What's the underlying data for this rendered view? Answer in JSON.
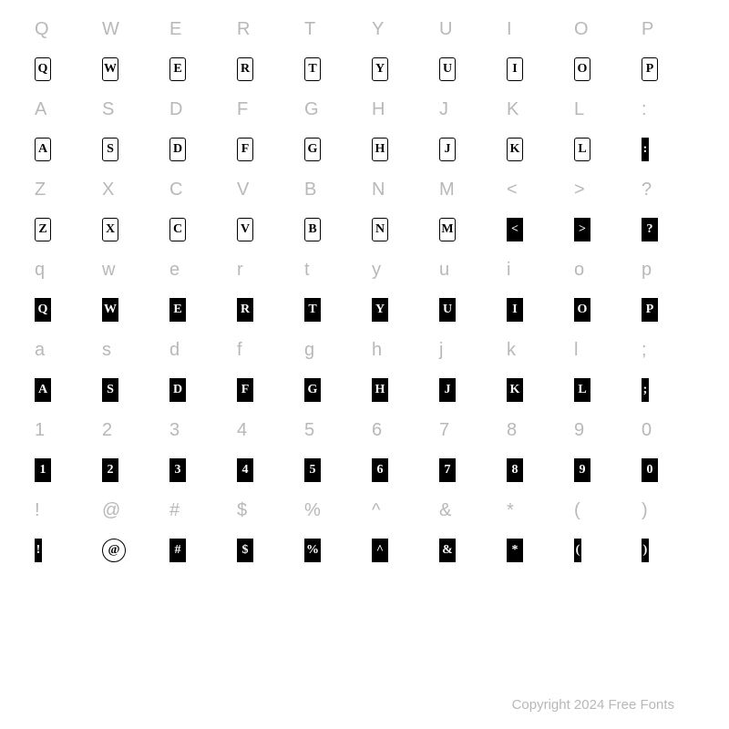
{
  "rows": [
    {
      "type": "label",
      "chars": [
        "Q",
        "W",
        "E",
        "R",
        "T",
        "Y",
        "U",
        "I",
        "O",
        "P"
      ]
    },
    {
      "type": "outlined",
      "chars": [
        "Q",
        "W",
        "E",
        "R",
        "T",
        "Y",
        "U",
        "I",
        "O",
        "P"
      ]
    },
    {
      "type": "label",
      "chars": [
        "A",
        "S",
        "D",
        "F",
        "G",
        "H",
        "J",
        "K",
        "L",
        ":"
      ]
    },
    {
      "type": "outlined",
      "chars": [
        "A",
        "S",
        "D",
        "F",
        "G",
        "H",
        "J",
        "K",
        "L"
      ],
      "special": [
        {
          "idx": 9,
          "style": "narrow-filled",
          "char": ":"
        }
      ]
    },
    {
      "type": "label",
      "chars": [
        "Z",
        "X",
        "C",
        "V",
        "B",
        "N",
        "M",
        "<",
        ">",
        "?"
      ]
    },
    {
      "type": "outlined",
      "chars": [
        "Z",
        "X",
        "C",
        "V",
        "B",
        "N",
        "M"
      ],
      "special": [
        {
          "idx": 7,
          "style": "filled",
          "char": "<"
        },
        {
          "idx": 8,
          "style": "filled",
          "char": ">"
        },
        {
          "idx": 9,
          "style": "filled",
          "char": "?"
        }
      ]
    },
    {
      "type": "label",
      "chars": [
        "q",
        "w",
        "e",
        "r",
        "t",
        "y",
        "u",
        "i",
        "o",
        "p"
      ]
    },
    {
      "type": "filled",
      "chars": [
        "Q",
        "W",
        "E",
        "R",
        "T",
        "Y",
        "U",
        "I",
        "O",
        "P"
      ]
    },
    {
      "type": "label",
      "chars": [
        "a",
        "s",
        "d",
        "f",
        "g",
        "h",
        "j",
        "k",
        "l",
        ";"
      ]
    },
    {
      "type": "filled",
      "chars": [
        "A",
        "S",
        "D",
        "F",
        "G",
        "H",
        "J",
        "K",
        "L"
      ],
      "special": [
        {
          "idx": 9,
          "style": "narrow-filled",
          "char": ";"
        }
      ]
    },
    {
      "type": "label",
      "chars": [
        "1",
        "2",
        "3",
        "4",
        "5",
        "6",
        "7",
        "8",
        "9",
        "0"
      ]
    },
    {
      "type": "filled",
      "chars": [
        "1",
        "2",
        "3",
        "4",
        "5",
        "6",
        "7",
        "8",
        "9",
        "0"
      ]
    },
    {
      "type": "label",
      "chars": [
        "!",
        "@",
        "#",
        "$",
        "%",
        "^",
        "&",
        "*",
        "(",
        ")"
      ]
    },
    {
      "type": "filled-sym",
      "chars": [
        "!",
        "@",
        "#",
        "$",
        "%",
        "^",
        "&",
        "*",
        "(",
        ")"
      ]
    }
  ],
  "copyright": "Copyright 2024 Free Fonts",
  "styles": {
    "label_color": "#b8b8b8",
    "outlined_border": "#000000",
    "filled_bg": "#000000",
    "filled_fg": "#ffffff",
    "background": "#ffffff"
  }
}
